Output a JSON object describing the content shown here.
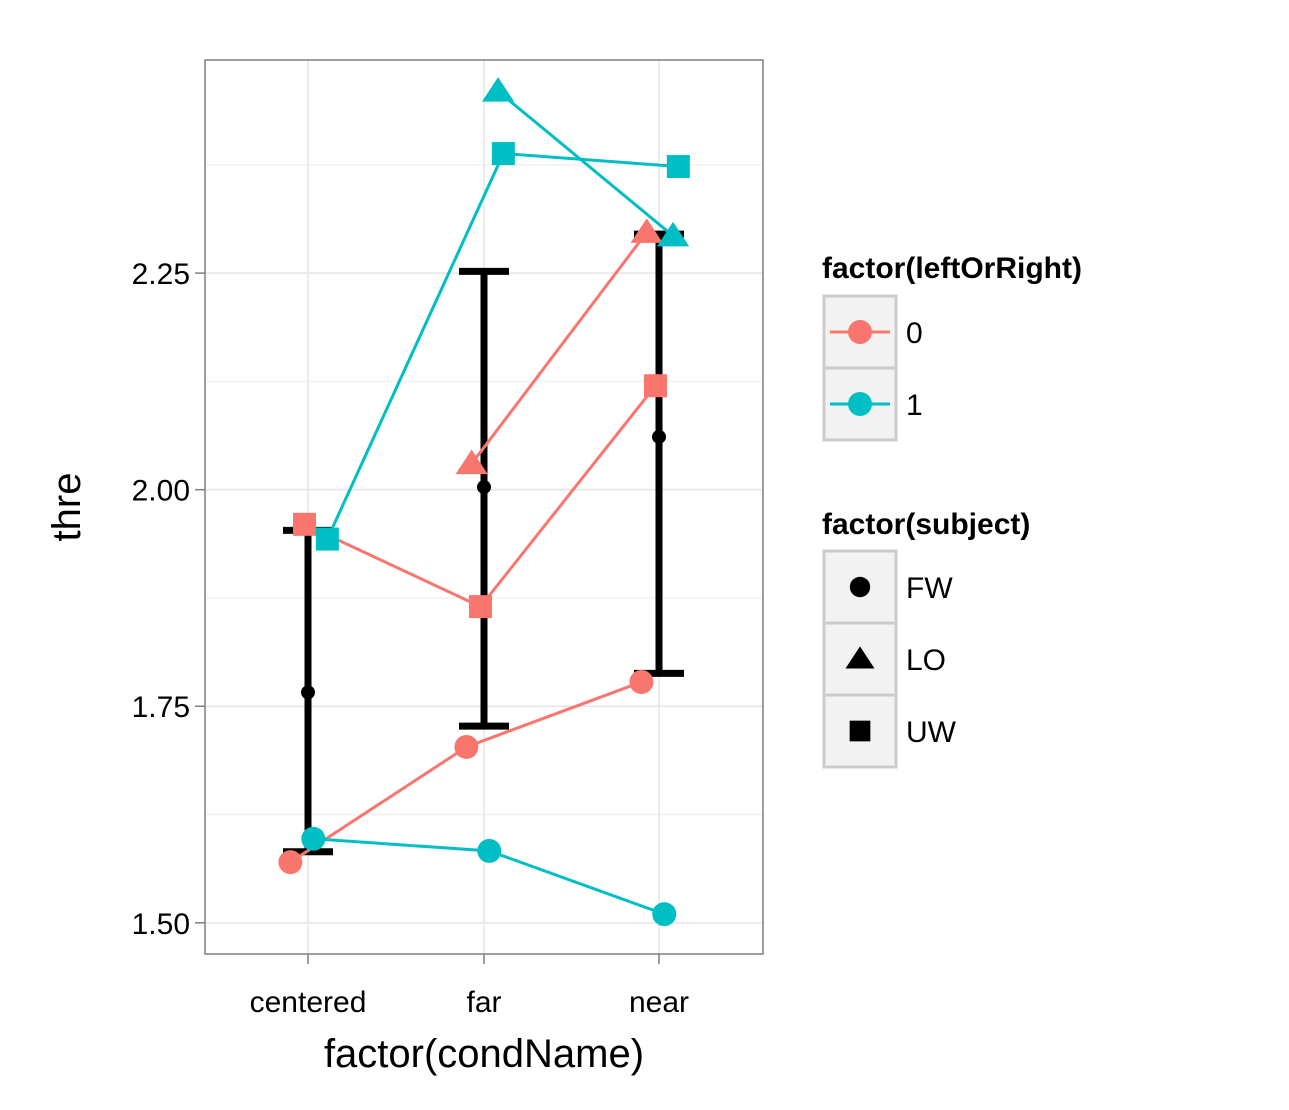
{
  "chart_data": {
    "type": "line",
    "title": "",
    "xlabel": "factor(condName)",
    "ylabel": "thre",
    "categories": [
      "centered",
      "far",
      "near"
    ],
    "ylim": [
      1.464,
      2.496
    ],
    "yticks": [
      1.5,
      1.75,
      2.0,
      2.25
    ],
    "ytick_labels": [
      "1.50",
      "1.75",
      "2.00",
      "2.25"
    ],
    "grid": true,
    "legend_position": "right",
    "colors": {
      "0": "#F8766D",
      "1": "#00BFC4",
      "summary": "#000000"
    },
    "color_legend": {
      "title": "factor(leftOrRight)",
      "entries": [
        {
          "label": "0",
          "color": "#F8766D"
        },
        {
          "label": "1",
          "color": "#00BFC4"
        }
      ]
    },
    "shape_legend": {
      "title": "factor(subject)",
      "entries": [
        {
          "label": "FW",
          "shape": "circle"
        },
        {
          "label": "LO",
          "shape": "triangle"
        },
        {
          "label": "UW",
          "shape": "square"
        }
      ]
    },
    "series": [
      {
        "subject": "FW",
        "leftOrRight": "0",
        "shape": "circle",
        "values": [
          1.57,
          1.703,
          1.778
        ],
        "offset": -0.1
      },
      {
        "subject": "FW",
        "leftOrRight": "1",
        "shape": "circle",
        "values": [
          1.597,
          1.583,
          1.51
        ],
        "offset": 0.03
      },
      {
        "subject": "LO",
        "leftOrRight": "0",
        "shape": "triangle",
        "values": [
          null,
          2.03,
          2.297
        ],
        "offset": -0.07
      },
      {
        "subject": "LO",
        "leftOrRight": "1",
        "shape": "triangle",
        "values": [
          null,
          2.46,
          2.293
        ],
        "offset": 0.08
      },
      {
        "subject": "UW",
        "leftOrRight": "0",
        "shape": "square",
        "values": [
          1.96,
          1.865,
          2.12
        ],
        "offset": -0.02
      },
      {
        "subject": "UW",
        "leftOrRight": "1",
        "shape": "square",
        "values": [
          1.943,
          2.388,
          2.373
        ],
        "offset": 0.11
      }
    ],
    "summary": {
      "mean": [
        1.766,
        2.003,
        2.061
      ],
      "lower": [
        1.582,
        1.727,
        1.788
      ],
      "upper": [
        1.953,
        2.252,
        2.295
      ]
    }
  }
}
